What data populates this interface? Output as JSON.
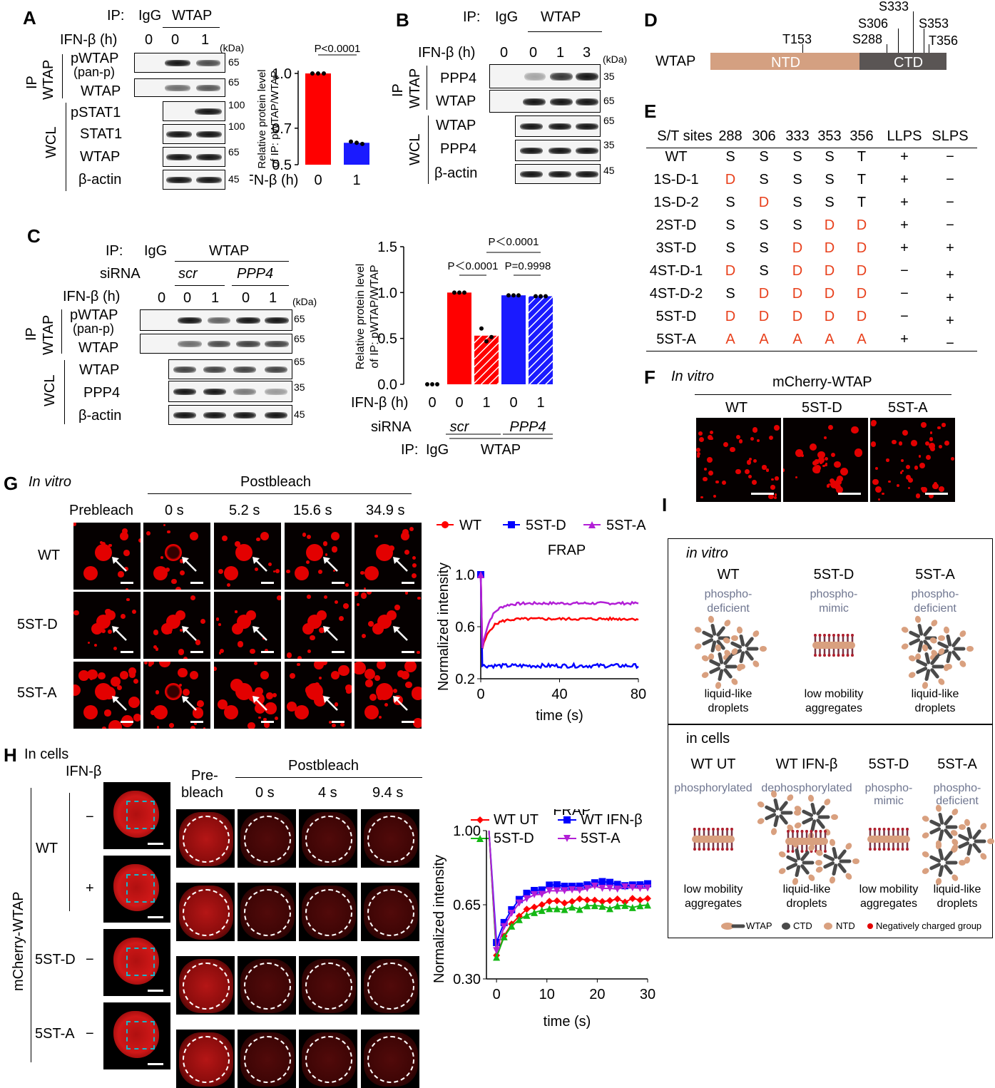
{
  "panels": {
    "A": "A",
    "B": "B",
    "C": "C",
    "D": "D",
    "E": "E",
    "F": "F",
    "G": "G",
    "H": "H",
    "I": "I"
  },
  "common": {
    "ip": "IP:",
    "igg": "IgG",
    "wtap": "WTAP",
    "ifn": "IFN-β (h)",
    "kda": "(kDa)",
    "ip_vert": "IP",
    "wcl": "WCL",
    "wtap_vert": "WTAP",
    "siRNA": "siRNA",
    "scr": "scr",
    "ppp4": "PPP4"
  },
  "panelA": {
    "times": [
      "0",
      "0",
      "1"
    ],
    "rows": [
      "pWTAP",
      "(pan-p)",
      "WTAP",
      "pSTAT1",
      "STAT1",
      "WTAP",
      "β-actin"
    ],
    "kda": [
      "65",
      "65",
      "100",
      "100",
      "65",
      "45"
    ],
    "chart_data": {
      "type": "bar",
      "categories": [
        "0",
        "1"
      ],
      "values": [
        1.0,
        0.62
      ],
      "ylabel": "Relative protein level of IP: pWTAP/WTAP",
      "xlabel": "IFN-β (h)",
      "ylim": [
        0.5,
        1.0
      ],
      "yticks": [
        "0.5",
        "0.7",
        "1.0"
      ],
      "pvalue": "P<0.0001",
      "ylabel_l1": "Relative protein level",
      "ylabel_l2": "of IP: pWTAP/WTAP",
      "colors": [
        "#ff0000",
        "#1a1aff"
      ]
    }
  },
  "panelB": {
    "times": [
      "0",
      "0",
      "1",
      "3"
    ],
    "rows": [
      "PPP4",
      "WTAP",
      "WTAP",
      "PPP4",
      "β-actin"
    ],
    "kda": [
      "35",
      "65",
      "65",
      "35",
      "45"
    ]
  },
  "panelC": {
    "times": [
      "0",
      "0",
      "1",
      "0",
      "1"
    ],
    "rows": [
      "pWTAP",
      "(pan-p)",
      "WTAP",
      "WTAP",
      "PPP4",
      "β-actin"
    ],
    "kda": [
      "65",
      "65",
      "65",
      "35",
      "45"
    ],
    "chart_data": {
      "type": "bar",
      "categories": [
        "0",
        "0",
        "1",
        "0",
        "1"
      ],
      "values": [
        0.0,
        1.0,
        0.53,
        0.97,
        0.96
      ],
      "ylim": [
        0,
        1.5
      ],
      "yticks": [
        "0.0",
        "0.5",
        "1.0",
        "1.5"
      ],
      "ylabel_l1": "Relative protein level",
      "ylabel_l2": "of IP: pWTAP/WTAP",
      "p1": "P＜0.0001",
      "p2": "P=0.9998",
      "p3": "P＜0.0001",
      "xrow1": "IFN-β (h)",
      "xrow2": "siRNA",
      "xrow3": "IP:",
      "igg": "IgG",
      "wtap": "WTAP",
      "scr": "scr",
      "ppp4": "PPP4"
    }
  },
  "panelD": {
    "protein": "WTAP",
    "ntd": "NTD",
    "ctd": "CTD",
    "sites": [
      "T153",
      "S288",
      "S306",
      "S333",
      "S353",
      "T356"
    ],
    "colors": {
      "ntd": "#d4a081",
      "ctd": "#5a5554"
    }
  },
  "panelE": {
    "headers": [
      "S/T sites",
      "288",
      "306",
      "333",
      "353",
      "356",
      "LLPS",
      "SLPS"
    ],
    "rows": [
      {
        "name": "WT",
        "sites": [
          "S",
          "S",
          "S",
          "S",
          "T"
        ],
        "llps": "+",
        "slps": "−"
      },
      {
        "name": "1S-D-1",
        "sites": [
          "D",
          "S",
          "S",
          "S",
          "T"
        ],
        "llps": "+",
        "slps": "−"
      },
      {
        "name": "1S-D-2",
        "sites": [
          "S",
          "D",
          "S",
          "S",
          "T"
        ],
        "llps": "+",
        "slps": "−"
      },
      {
        "name": "2ST-D",
        "sites": [
          "S",
          "S",
          "S",
          "D",
          "D"
        ],
        "llps": "+",
        "slps": "−"
      },
      {
        "name": "3ST-D",
        "sites": [
          "S",
          "S",
          "D",
          "D",
          "D"
        ],
        "llps": "+",
        "slps": "+"
      },
      {
        "name": "4ST-D-1",
        "sites": [
          "D",
          "S",
          "D",
          "D",
          "D"
        ],
        "llps": "−",
        "slps": "+"
      },
      {
        "name": "4ST-D-2",
        "sites": [
          "S",
          "D",
          "D",
          "D",
          "D"
        ],
        "llps": "−",
        "slps": "+"
      },
      {
        "name": "5ST-D",
        "sites": [
          "D",
          "D",
          "D",
          "D",
          "D"
        ],
        "llps": "−",
        "slps": "+"
      },
      {
        "name": "5ST-A",
        "sites": [
          "A",
          "A",
          "A",
          "A",
          "A"
        ],
        "llps": "+",
        "slps": "−"
      }
    ]
  },
  "panelF": {
    "invitro": "In vitro",
    "title": "mCherry-WTAP",
    "cols": [
      "WT",
      "5ST-D",
      "5ST-A"
    ]
  },
  "panelG": {
    "invitro": "In vitro",
    "postbleach": "Postbleach",
    "cols": [
      "Prebleach",
      "0 s",
      "5.2 s",
      "15.6 s",
      "34.9 s"
    ],
    "rows": [
      "WT",
      "5ST-D",
      "5ST-A"
    ],
    "chart_data": {
      "type": "line",
      "title": "FRAP",
      "xlabel": "time (s)",
      "ylabel": "Normalized intensity",
      "xlim": [
        0,
        80
      ],
      "ylim": [
        0.2,
        1.0
      ],
      "xticks": [
        "0",
        "40",
        "80"
      ],
      "yticks": [
        "0.2",
        "0.6",
        "1.0"
      ],
      "series": [
        {
          "name": "WT",
          "color": "#ff0000",
          "marker": "circle",
          "plateau": 0.66,
          "min": 0.38
        },
        {
          "name": "5ST-D",
          "color": "#0000ff",
          "marker": "square",
          "plateau": 0.3,
          "min": 0.3
        },
        {
          "name": "5ST-A",
          "color": "#b21fd6",
          "marker": "triangle",
          "plateau": 0.78,
          "min": 0.36
        }
      ]
    }
  },
  "panelH": {
    "incells": "In cells",
    "ifn": "IFN-β",
    "construct": "mCherry-WTAP",
    "rowgroups": [
      "WT",
      "5ST-D",
      "5ST-A"
    ],
    "treat": [
      "−",
      "+",
      "−",
      "−"
    ],
    "cols": [
      "Pre-",
      "bleach",
      "0 s",
      "4 s",
      "9.4 s"
    ],
    "postbleach": "Postbleach",
    "chart_data": {
      "type": "line",
      "title": "FRAP",
      "xlabel": "time (s)",
      "ylabel": "Normalized intensity",
      "xlim": [
        -2,
        30
      ],
      "ylim": [
        0.3,
        1.0
      ],
      "xticks": [
        "0",
        "10",
        "20",
        "30"
      ],
      "yticks": [
        "0.30",
        "0.65",
        "1.00"
      ],
      "series": [
        {
          "name": "WT UT",
          "color": "#ff0000",
          "marker": "diamond",
          "plateau": 0.67
        },
        {
          "name": "WT IFN-β",
          "color": "#0000ff",
          "marker": "square",
          "plateau": 0.75
        },
        {
          "name": "5ST-D",
          "color": "#14b814",
          "marker": "triangle",
          "plateau": 0.64
        },
        {
          "name": "5ST-A",
          "color": "#b21fd6",
          "marker": "triangle-down",
          "plateau": 0.73
        }
      ]
    }
  },
  "panelI": {
    "invitro": "in vitro",
    "incells": "in cells",
    "vitro_cols": [
      {
        "name": "WT",
        "sub1": "phospho-",
        "sub2": "deficient",
        "state1": "liquid-like",
        "state2": "droplets"
      },
      {
        "name": "5ST-D",
        "sub1": "phospho-",
        "sub2": "mimic",
        "state1": "low mobility",
        "state2": "aggregates"
      },
      {
        "name": "5ST-A",
        "sub1": "phospho-",
        "sub2": "deficient",
        "state1": "liquid-like",
        "state2": "droplets"
      }
    ],
    "cell_cols": [
      {
        "name": "WT UT",
        "sub1": "phosphorylated",
        "sub2": "",
        "state1": "low mobility",
        "state2": "aggregates"
      },
      {
        "name": "WT IFN-β",
        "sub1": "dephosphorylated",
        "sub2": "",
        "state1": "liquid-like",
        "state2": "droplets"
      },
      {
        "name": "5ST-D",
        "sub1": "phospho-",
        "sub2": "mimic",
        "state1": "low mobility",
        "state2": "aggregates"
      },
      {
        "name": "5ST-A",
        "sub1": "phospho-",
        "sub2": "deficient",
        "state1": "liquid-like",
        "state2": "droplets"
      }
    ],
    "legend": [
      "WTAP",
      "CTD",
      "NTD",
      "Negatively charged group"
    ]
  }
}
